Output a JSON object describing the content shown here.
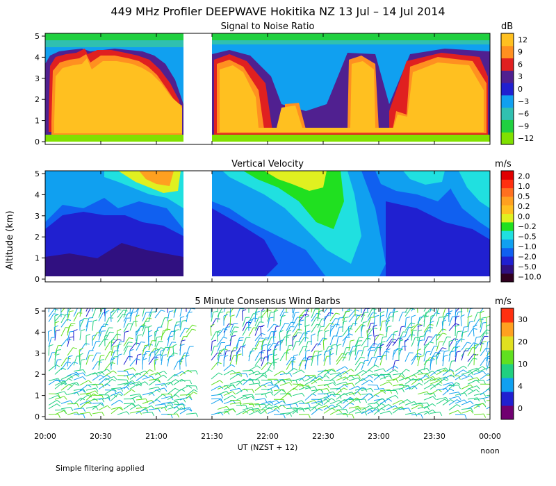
{
  "title": "449 MHz Profiler DEEPWAVE Hokitika NZ 13 Jul – 14 Jul 2014",
  "footnote": "Simple filtering applied",
  "y_axis_label": "Altitude (km)",
  "x_axis_label": "UT  (NZST + 12)",
  "x_secondary_label": "noon",
  "x_tick_labels": [
    "20:00",
    "20:30",
    "21:00",
    "21:30",
    "22:00",
    "22:30",
    "23:00",
    "23:30",
    "00:00"
  ],
  "y_tick_labels": [
    "0",
    "1",
    "2",
    "3",
    "4",
    "5"
  ],
  "colors": {
    "snr_scale": [
      "#80e000",
      "#20d040",
      "#30c0b0",
      "#10a0f0",
      "#2020d0",
      "#502090",
      "#e02020",
      "#ff9020",
      "#ffc020"
    ],
    "vv_scale": [
      "#300020",
      "#301080",
      "#2020d0",
      "#1060f0",
      "#10a0f0",
      "#20e0e0",
      "#20e020",
      "#e0f020",
      "#ffc020",
      "#ffa020",
      "#ff7020",
      "#ff3010",
      "#e00000"
    ],
    "wind_scale": [
      "#700070",
      "#2020d0",
      "#10a0f0",
      "#20d080",
      "#60e020",
      "#e0e020",
      "#ffa020",
      "#ff3010"
    ]
  },
  "chart_data": [
    {
      "type": "heatmap",
      "title": "Signal to Noise Ratio",
      "unit": "dB",
      "colorbar_ticks": [
        "12",
        "9",
        "6",
        "3",
        "0",
        "−3",
        "−6",
        "−9",
        "−12"
      ],
      "ylim": [
        0,
        5
      ],
      "data_gap": [
        "21:20",
        "21:30"
      ],
      "series": [
        {
          "name": "20:00–21:20",
          "x": [
            "20:00",
            "20:10",
            "20:20",
            "20:30",
            "20:40",
            "20:50",
            "21:00",
            "21:10"
          ],
          "top_km": [
            4.2,
            4.5,
            4.3,
            4.4,
            4.2,
            4.0,
            3.8,
            2.2
          ]
        },
        {
          "name": "21:30–00:00",
          "x": [
            "21:30",
            "21:50",
            "22:10",
            "22:30",
            "22:50",
            "23:10",
            "23:30",
            "23:50"
          ],
          "top_km": [
            4.3,
            3.0,
            1.6,
            2.3,
            4.2,
            1.5,
            4.3,
            4.2
          ]
        }
      ]
    },
    {
      "type": "heatmap",
      "title": "Vertical Velocity",
      "unit": "m/s",
      "colorbar_ticks": [
        "2.0",
        "1.0",
        "0.5",
        "0.2",
        "0.0",
        "−0.2",
        "−0.5",
        "−1.0",
        "−2.0",
        "−5.0",
        "−10.0"
      ],
      "ylim": [
        0,
        5
      ]
    },
    {
      "type": "scatter",
      "title": "5 Minute Consensus Wind Barbs",
      "unit": "m/s",
      "colorbar_ticks": [
        "30",
        "20",
        "10",
        "4",
        "0"
      ],
      "ylim": [
        0,
        5
      ]
    }
  ]
}
